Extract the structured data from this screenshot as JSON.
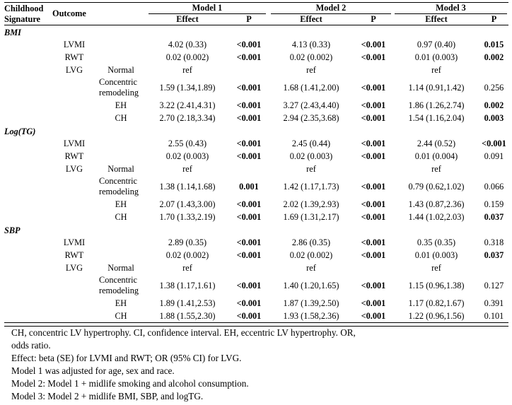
{
  "headers": {
    "signature": [
      "Childhood",
      "Signature"
    ],
    "outcome": "Outcome",
    "models": [
      "Model 1",
      "Model 2",
      "Model 3"
    ],
    "effect": "Effect",
    "p": "P"
  },
  "sections": [
    {
      "name": "BMI",
      "rows": [
        {
          "outcome": "LVMI",
          "sub": "",
          "m1": "4.02 (0.33)",
          "p1": "<0.001",
          "p1b": true,
          "m2": "4.13 (0.33)",
          "p2": "<0.001",
          "p2b": true,
          "m3": "0.97 (0.40)",
          "p3": "0.015",
          "p3b": true
        },
        {
          "outcome": "RWT",
          "sub": "",
          "m1": "0.02 (0.002)",
          "p1": "<0.001",
          "p1b": true,
          "m2": "0.02 (0.002)",
          "p2": "<0.001",
          "p2b": true,
          "m3": "0.01 (0.003)",
          "p3": "0.002",
          "p3b": true
        },
        {
          "outcome": "LVG",
          "sub": "Normal",
          "m1": "ref",
          "p1": "",
          "p1b": false,
          "m2": "ref",
          "p2": "",
          "p2b": false,
          "m3": "ref",
          "p3": "",
          "p3b": false
        },
        {
          "outcome": "",
          "sub": "Concentric remodeling",
          "m1": "1.59 (1.34,1.89)",
          "p1": "<0.001",
          "p1b": true,
          "m2": "1.68 (1.41,2.00)",
          "p2": "<0.001",
          "p2b": true,
          "m3": "1.14 (0.91,1.42)",
          "p3": "0.256",
          "p3b": false
        },
        {
          "outcome": "",
          "sub": "EH",
          "m1": "3.22 (2.41,4.31)",
          "p1": "<0.001",
          "p1b": true,
          "m2": "3.27 (2.43,4.40)",
          "p2": "<0.001",
          "p2b": true,
          "m3": "1.86 (1.26,2.74)",
          "p3": "0.002",
          "p3b": true
        },
        {
          "outcome": "",
          "sub": "CH",
          "m1": "2.70 (2.18,3.34)",
          "p1": "<0.001",
          "p1b": true,
          "m2": "2.94 (2.35,3.68)",
          "p2": "<0.001",
          "p2b": true,
          "m3": "1.54 (1.16,2.04)",
          "p3": "0.003",
          "p3b": true
        }
      ]
    },
    {
      "name": "Log(TG)",
      "rows": [
        {
          "outcome": "LVMI",
          "sub": "",
          "m1": "2.55 (0.43)",
          "p1": "<0.001",
          "p1b": true,
          "m2": "2.45 (0.44)",
          "p2": "<0.001",
          "p2b": true,
          "m3": "2.44 (0.52)",
          "p3": "<0.001",
          "p3b": true
        },
        {
          "outcome": "RWT",
          "sub": "",
          "m1": "0.02 (0.003)",
          "p1": "<0.001",
          "p1b": true,
          "m2": "0.02 (0.003)",
          "p2": "<0.001",
          "p2b": true,
          "m3": "0.01 (0.004)",
          "p3": "0.091",
          "p3b": false
        },
        {
          "outcome": "LVG",
          "sub": "Normal",
          "m1": "ref",
          "p1": "",
          "p1b": false,
          "m2": "ref",
          "p2": "",
          "p2b": false,
          "m3": "ref",
          "p3": "",
          "p3b": false
        },
        {
          "outcome": "",
          "sub": "Concentric remodeling",
          "m1": "1.38 (1.14,1.68)",
          "p1": "0.001",
          "p1b": true,
          "m2": "1.42 (1.17,1.73)",
          "p2": "<0.001",
          "p2b": true,
          "m3": "0.79 (0.62,1.02)",
          "p3": "0.066",
          "p3b": false
        },
        {
          "outcome": "",
          "sub": "EH",
          "m1": "2.07 (1.43,3.00)",
          "p1": "<0.001",
          "p1b": true,
          "m2": "2.02 (1.39,2.93)",
          "p2": "<0.001",
          "p2b": true,
          "m3": "1.43 (0.87,2.36)",
          "p3": "0.159",
          "p3b": false
        },
        {
          "outcome": "",
          "sub": "CH",
          "m1": "1.70 (1.33,2.19)",
          "p1": "<0.001",
          "p1b": true,
          "m2": "1.69 (1.31,2.17)",
          "p2": "<0.001",
          "p2b": true,
          "m3": "1.44 (1.02,2.03)",
          "p3": "0.037",
          "p3b": true
        }
      ]
    },
    {
      "name": "SBP",
      "rows": [
        {
          "outcome": "LVMI",
          "sub": "",
          "m1": "2.89 (0.35)",
          "p1": "<0.001",
          "p1b": true,
          "m2": "2.86 (0.35)",
          "p2": "<0.001",
          "p2b": true,
          "m3": "0.35 (0.35)",
          "p3": "0.318",
          "p3b": false
        },
        {
          "outcome": "RWT",
          "sub": "",
          "m1": "0.02 (0.002)",
          "p1": "<0.001",
          "p1b": true,
          "m2": "0.02 (0.002)",
          "p2": "<0.001",
          "p2b": true,
          "m3": "0.01 (0.003)",
          "p3": "0.037",
          "p3b": true
        },
        {
          "outcome": "LVG",
          "sub": "Normal",
          "m1": "ref",
          "p1": "",
          "p1b": false,
          "m2": "ref",
          "p2": "",
          "p2b": false,
          "m3": "ref",
          "p3": "",
          "p3b": false
        },
        {
          "outcome": "",
          "sub": "Concentric remodeling",
          "m1": "1.38 (1.17,1.61)",
          "p1": "<0.001",
          "p1b": true,
          "m2": "1.40 (1.20,1.65)",
          "p2": "<0.001",
          "p2b": true,
          "m3": "1.15 (0.96,1.38)",
          "p3": "0.127",
          "p3b": false
        },
        {
          "outcome": "",
          "sub": "EH",
          "m1": "1.89 (1.41,2.53)",
          "p1": "<0.001",
          "p1b": true,
          "m2": "1.87 (1.39,2.50)",
          "p2": "<0.001",
          "p2b": true,
          "m3": "1.17 (0.82,1.67)",
          "p3": "0.391",
          "p3b": false
        },
        {
          "outcome": "",
          "sub": "CH",
          "m1": "1.88 (1.55,2.30)",
          "p1": "<0.001",
          "p1b": true,
          "m2": "1.93 (1.58,2.36)",
          "p2": "<0.001",
          "p2b": true,
          "m3": "1.22 (0.96,1.56)",
          "p3": "0.101",
          "p3b": false
        }
      ]
    }
  ],
  "notes": [
    "CH, concentric LV hypertrophy. CI, confidence interval. EH, eccentric LV hypertrophy. OR,",
    "odds ratio.",
    "Effect: beta (SE) for LVMI and RWT; OR (95% CI) for LVG.",
    "Model 1 was adjusted for age, sex and race.",
    "Model 2: Model 1 + midlife smoking and alcohol consumption.",
    "Model 3: Model 2 + midlife BMI, SBP, and logTG."
  ]
}
